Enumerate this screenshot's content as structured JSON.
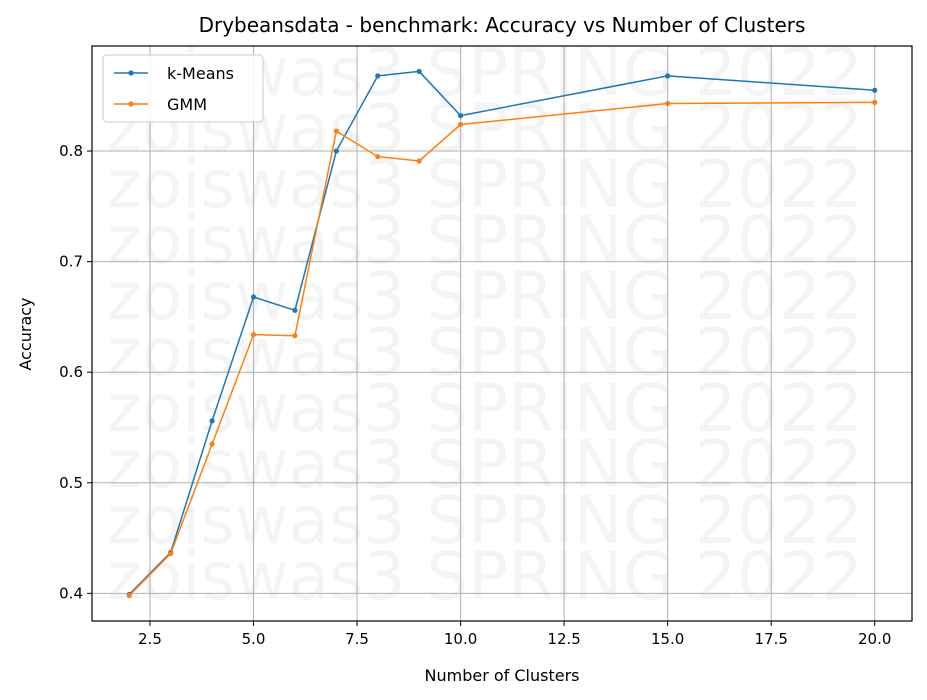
{
  "chart_data": {
    "type": "line",
    "title": "Drybeansdata - benchmark: Accuracy vs Number of Clusters",
    "xlabel": "Number of Clusters",
    "ylabel": "Accuracy",
    "x": [
      2,
      3,
      4,
      5,
      6,
      7,
      8,
      9,
      10,
      15,
      20
    ],
    "xlim": [
      1.1,
      20.9
    ],
    "ylim": [
      0.375,
      0.895
    ],
    "xticks": [
      2.5,
      5.0,
      7.5,
      10.0,
      12.5,
      15.0,
      17.5,
      20.0
    ],
    "xtick_labels": [
      "2.5",
      "5.0",
      "7.5",
      "10.0",
      "12.5",
      "15.0",
      "17.5",
      "20.0"
    ],
    "yticks": [
      0.4,
      0.5,
      0.6,
      0.7,
      0.8
    ],
    "ytick_labels": [
      "0.4",
      "0.5",
      "0.6",
      "0.7",
      "0.8"
    ],
    "grid": true,
    "legend_position": "top-left",
    "series": [
      {
        "name": "k-Means",
        "color": "#1f77b4",
        "values": [
          0.399,
          0.437,
          0.556,
          0.668,
          0.656,
          0.8,
          0.868,
          0.872,
          0.832,
          0.868,
          0.855
        ]
      },
      {
        "name": "GMM",
        "color": "#ff7f0e",
        "values": [
          0.398,
          0.436,
          0.535,
          0.634,
          0.633,
          0.818,
          0.795,
          0.791,
          0.824,
          0.843,
          0.844
        ]
      }
    ],
    "watermark": "zoiswas3 SPRING 2022"
  }
}
